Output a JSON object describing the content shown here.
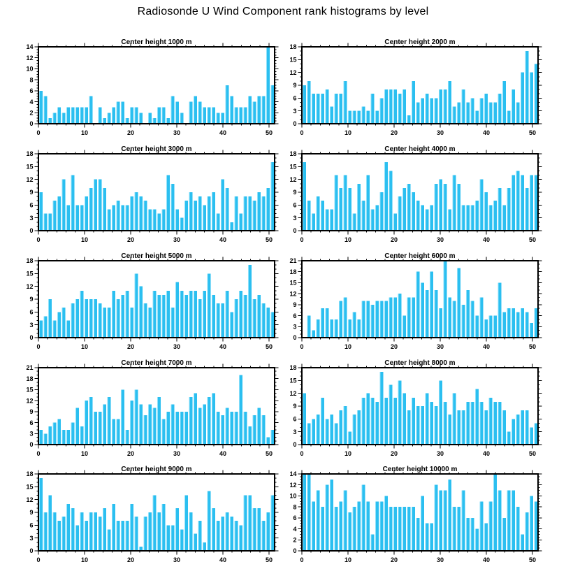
{
  "page_title": "Radiosonde U Wind Component rank histograms by level",
  "colors": {
    "bar": "#2BBFF0",
    "bar_highlight": "#90E1FA",
    "axis": "#000000",
    "background": "#FFFFFF"
  },
  "x_tick_labels": [
    "0",
    "10",
    "20",
    "30",
    "40",
    "50"
  ],
  "chart_data": [
    {
      "type": "bar",
      "title": "Center height 1000 m",
      "xlim": [
        0,
        52
      ],
      "ylim": [
        0,
        14
      ],
      "ystep": 2,
      "bins": 52,
      "values": [
        6,
        5,
        1,
        2,
        3,
        2,
        3,
        3,
        3,
        3,
        3,
        5,
        0,
        3,
        1,
        2,
        3,
        4,
        4,
        1,
        3,
        3,
        2,
        0,
        2,
        1,
        3,
        3,
        1,
        5,
        4,
        2,
        0,
        4,
        5,
        4,
        3,
        3,
        3,
        2,
        2,
        7,
        5,
        3,
        3,
        3,
        5,
        4,
        5,
        5,
        14,
        7
      ]
    },
    {
      "type": "bar",
      "title": "Center height 2000 m",
      "xlim": [
        0,
        52
      ],
      "ylim": [
        0,
        18
      ],
      "ystep": 3,
      "bins": 52,
      "values": [
        9,
        10,
        7,
        7,
        7,
        8,
        4,
        7,
        7,
        10,
        3,
        3,
        3,
        4,
        3,
        7,
        3,
        6,
        8,
        8,
        8,
        7,
        8,
        2,
        10,
        5,
        6,
        7,
        6,
        6,
        8,
        8,
        10,
        4,
        5,
        8,
        5,
        6,
        3,
        6,
        7,
        5,
        5,
        7,
        10,
        3,
        8,
        5,
        12,
        17,
        12,
        14
      ]
    },
    {
      "type": "bar",
      "title": "Center height 3000 m",
      "xlim": [
        0,
        52
      ],
      "ylim": [
        0,
        18
      ],
      "ystep": 3,
      "bins": 52,
      "values": [
        9,
        4,
        4,
        7,
        8,
        12,
        6,
        13,
        6,
        6,
        8,
        10,
        12,
        12,
        10,
        5,
        6,
        7,
        6,
        6,
        8,
        9,
        8,
        7,
        5,
        5,
        4,
        5,
        13,
        11,
        5,
        3,
        7,
        9,
        7,
        8,
        6,
        8,
        9,
        4,
        12,
        10,
        2,
        8,
        4,
        8,
        8,
        7,
        9,
        8,
        10,
        16
      ]
    },
    {
      "type": "bar",
      "title": "Center height 4000 m",
      "xlim": [
        0,
        52
      ],
      "ylim": [
        0,
        18
      ],
      "ystep": 3,
      "bins": 52,
      "values": [
        16,
        7,
        4,
        8,
        7,
        5,
        5,
        13,
        10,
        13,
        10,
        4,
        11,
        7,
        13,
        5,
        6,
        9,
        16,
        14,
        4,
        8,
        10,
        11,
        9,
        7,
        6,
        5,
        6,
        11,
        12,
        11,
        5,
        13,
        11,
        6,
        6,
        6,
        7,
        12,
        9,
        6,
        7,
        10,
        6,
        10,
        13,
        14,
        13,
        10,
        13,
        13
      ]
    },
    {
      "type": "bar",
      "title": "Center height 5000 m",
      "xlim": [
        0,
        52
      ],
      "ylim": [
        0,
        18
      ],
      "ystep": 3,
      "bins": 52,
      "values": [
        4,
        5,
        9,
        4,
        6,
        7,
        4,
        8,
        9,
        11,
        9,
        9,
        9,
        8,
        7,
        7,
        11,
        9,
        10,
        11,
        7,
        15,
        12,
        8,
        7,
        11,
        10,
        10,
        11,
        7,
        13,
        11,
        10,
        11,
        11,
        9,
        11,
        15,
        10,
        8,
        8,
        11,
        6,
        9,
        11,
        10,
        17,
        9,
        10,
        8,
        7,
        6
      ]
    },
    {
      "type": "bar",
      "title": "Center height 6000 m",
      "xlim": [
        0,
        52
      ],
      "ylim": [
        0,
        21
      ],
      "ystep": 3,
      "bins": 52,
      "values": [
        0,
        6,
        2,
        5,
        8,
        8,
        5,
        5,
        10,
        11,
        5,
        7,
        5,
        10,
        10,
        9,
        10,
        10,
        10,
        11,
        11,
        12,
        6,
        11,
        11,
        18,
        15,
        13,
        18,
        13,
        8,
        21,
        11,
        10,
        19,
        9,
        13,
        10,
        6,
        11,
        5,
        6,
        6,
        15,
        7,
        8,
        8,
        7,
        8,
        7,
        4,
        8
      ]
    },
    {
      "type": "bar",
      "title": "Center height 7000 m",
      "xlim": [
        0,
        52
      ],
      "ylim": [
        0,
        21
      ],
      "ystep": 3,
      "bins": 52,
      "values": [
        4,
        3,
        5,
        6,
        7,
        4,
        4,
        6,
        10,
        5,
        12,
        13,
        9,
        9,
        11,
        13,
        7,
        7,
        15,
        4,
        12,
        15,
        11,
        8,
        11,
        10,
        13,
        7,
        9,
        11,
        9,
        9,
        9,
        13,
        14,
        10,
        11,
        13,
        14,
        9,
        8,
        10,
        9,
        9,
        19,
        9,
        5,
        8,
        10,
        8,
        2,
        4
      ]
    },
    {
      "type": "bar",
      "title": "Center height 8000 m",
      "xlim": [
        0,
        52
      ],
      "ylim": [
        0,
        18
      ],
      "ystep": 3,
      "bins": 52,
      "values": [
        12,
        5,
        6,
        7,
        11,
        6,
        7,
        5,
        8,
        9,
        3,
        7,
        8,
        11,
        12,
        11,
        10,
        17,
        11,
        14,
        11,
        15,
        12,
        8,
        11,
        9,
        9,
        12,
        10,
        9,
        15,
        10,
        7,
        12,
        8,
        8,
        10,
        10,
        13,
        10,
        8,
        11,
        10,
        10,
        8,
        3,
        6,
        7,
        8,
        8,
        4,
        5
      ]
    },
    {
      "type": "bar",
      "title": "Center height 9000 m",
      "xlim": [
        0,
        52
      ],
      "ylim": [
        0,
        18
      ],
      "ystep": 3,
      "bins": 52,
      "values": [
        17,
        9,
        13,
        9,
        7,
        8,
        11,
        10,
        6,
        9,
        7,
        9,
        9,
        8,
        10,
        5,
        11,
        7,
        7,
        7,
        11,
        8,
        1,
        8,
        9,
        13,
        9,
        11,
        6,
        6,
        10,
        5,
        13,
        9,
        4,
        7,
        2,
        14,
        10,
        7,
        8,
        9,
        8,
        7,
        6,
        13,
        13,
        10,
        10,
        7,
        9,
        13
      ]
    },
    {
      "type": "bar",
      "title": "Center height 10000 m",
      "xlim": [
        0,
        52
      ],
      "ylim": [
        0,
        14
      ],
      "ystep": 2,
      "bins": 52,
      "values": [
        14,
        14,
        9,
        11,
        8,
        12,
        13,
        8,
        9,
        11,
        7,
        8,
        9,
        12,
        9,
        3,
        9,
        9,
        10,
        8,
        8,
        8,
        8,
        8,
        8,
        6,
        10,
        5,
        5,
        12,
        11,
        11,
        13,
        8,
        8,
        11,
        6,
        6,
        4,
        9,
        5,
        9,
        14,
        11,
        6,
        11,
        11,
        8,
        3,
        7,
        10,
        9
      ]
    }
  ]
}
